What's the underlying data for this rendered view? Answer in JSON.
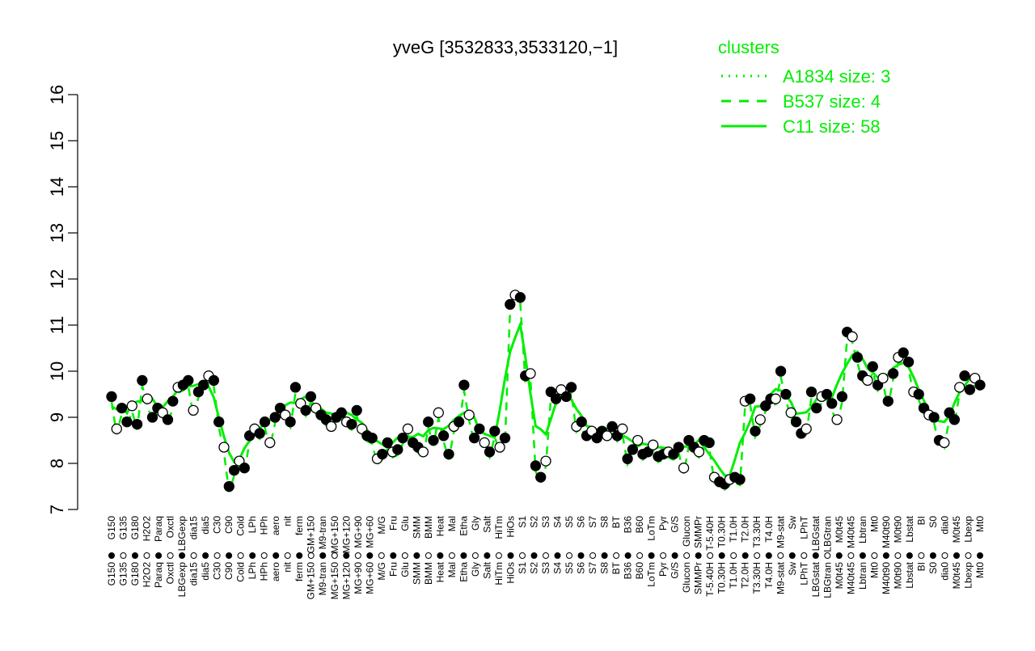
{
  "chart_data": {
    "type": "scatter",
    "title": "yveG [3532833,3533120,−1]",
    "ylim": [
      7,
      16
    ],
    "yticks": [
      7,
      8,
      9,
      10,
      11,
      12,
      13,
      14,
      15,
      16
    ],
    "legend": {
      "title": "clusters",
      "placement": "top-right",
      "entries": [
        {
          "label": "A1834 size: 3",
          "style": "dotted"
        },
        {
          "label": "B537 size: 4",
          "style": "dashed"
        },
        {
          "label": "C11 size: 58",
          "style": "solid"
        }
      ]
    },
    "colors": {
      "line": "#00ee00",
      "point_stroke": "#000000",
      "axis": "#000000"
    },
    "xlabels": [
      "G150",
      "G135",
      "G180",
      "H2O2",
      "Paraq",
      "Oxctl",
      "LBGexp",
      "dia15",
      "dia5",
      "C30",
      "C90",
      "Cold",
      "LPh",
      "HPh",
      "aero",
      "nit",
      "ferm",
      "GM+150",
      "M9-tran",
      "MG+150",
      "MG+120",
      "MG+90",
      "MG+60",
      "M/G",
      "Fru",
      "Glu",
      "SMM",
      "BMM",
      "Heat",
      "Mal",
      "Etha",
      "Gly",
      "Salt",
      "HiTm",
      "HiOs",
      "S1",
      "S2",
      "S3",
      "S4",
      "S5",
      "S6",
      "S7",
      "S8",
      "BT",
      "B36",
      "B60",
      "LoTm",
      "Pyr",
      "G/S",
      "Glucon",
      "SMMPr",
      "T-5.40H",
      "T0.30H",
      "T1.0H",
      "T2.0H",
      "T3.30H",
      "T4.0H",
      "M9-stat",
      "Sw",
      "LPhT",
      "LBGstat",
      "LBGtran",
      "M0t45",
      "M40t45",
      "Lbtran",
      "Mt0",
      "M40t90",
      "M0t90",
      "Lbstat",
      "BI",
      "S0",
      "dia0",
      "M0t45",
      "Lbexp",
      "Mt0"
    ],
    "series": [
      {
        "values": [
          9.45,
          8.75,
          9.2,
          8.9,
          9.25,
          8.85,
          9.8,
          9.4,
          9.0,
          9.2,
          9.1,
          8.95,
          9.35,
          9.65,
          9.7,
          9.8,
          9.15,
          9.55,
          9.7,
          9.9,
          9.8,
          8.9,
          8.35,
          7.5,
          7.85,
          8.05,
          7.9,
          8.6,
          8.75,
          8.65,
          8.9,
          8.45,
          9.0,
          9.2,
          9.05,
          8.9,
          9.65,
          9.3,
          9.15,
          9.45,
          9.2,
          9.05,
          8.95,
          8.8,
          9.0,
          9.1,
          8.9,
          8.85,
          9.15,
          8.75,
          8.6,
          8.55,
          8.1,
          8.2,
          8.45,
          8.25,
          8.3,
          8.55,
          8.75,
          8.45,
          8.35,
          8.25,
          8.9,
          8.5,
          9.1,
          8.6,
          8.2,
          8.8,
          8.9,
          9.7,
          9.05,
          8.55,
          8.75,
          8.45,
          8.25,
          8.7,
          8.35,
          8.55,
          11.45,
          11.65,
          11.6,
          9.9,
          9.95,
          7.95,
          7.7,
          8.05,
          9.55,
          9.4,
          9.6,
          9.45,
          9.65,
          8.8,
          8.9,
          8.6,
          8.7,
          8.55,
          8.7,
          8.6,
          8.8,
          8.6,
          8.75,
          8.1,
          8.3,
          8.5,
          8.2,
          8.25,
          8.4,
          8.15,
          8.2,
          8.25,
          8.2,
          8.35,
          7.9,
          8.5,
          8.35,
          8.25,
          8.5,
          8.45,
          7.7,
          7.6,
          7.55,
          7.65,
          7.7,
          7.65,
          9.35,
          9.4,
          8.7,
          8.95,
          9.25,
          9.4,
          9.4,
          10.0,
          9.5,
          9.1,
          8.9,
          8.65,
          8.75,
          9.55,
          9.2,
          9.45,
          9.5,
          9.3,
          8.95,
          9.45,
          10.85,
          10.75,
          10.3,
          9.9,
          9.8,
          10.1,
          9.7,
          9.85,
          9.35,
          9.95,
          10.3,
          10.4,
          10.2,
          9.55,
          9.5,
          9.2,
          9.05,
          9.0,
          8.5,
          8.45,
          9.1,
          8.95,
          9.65,
          9.9,
          9.6,
          9.85,
          9.7
        ]
      }
    ]
  }
}
